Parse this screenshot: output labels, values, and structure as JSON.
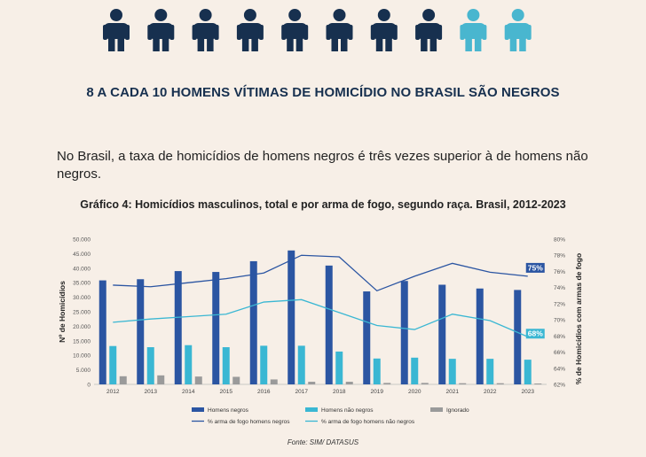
{
  "infographic": {
    "headline": "8 A CADA 10 HOMENS VÍTIMAS DE HOMICÍDIO NO BRASIL SÃO NEGROS",
    "people_total": 10,
    "people_highlighted": 8,
    "icon": "person-icon"
  },
  "body_text": "No Brasil, a taxa de homicídios de homens negros é três vezes superior à de homens não negros.",
  "source": "Fonte: SIM/ DATASUS",
  "colors": {
    "dark_blue": "#17304f",
    "light_blue": "#49b6cf",
    "bar_negros": "#2b55a2",
    "bar_nao_negros": "#3ab7d3",
    "bar_ignorado": "#9a9a9a",
    "background": "#f7efe7"
  },
  "chart_data": {
    "type": "bar",
    "title": "Gráfico 4: Homicídios masculinos, total e por arma de fogo, segundo raça. Brasil, 2012-2023",
    "ylabel": "Nº de Homicídios",
    "y2label": "% de Homicídios com armas de fogo",
    "categories": [
      "2012",
      "2013",
      "2014",
      "2015",
      "2016",
      "2017",
      "2018",
      "2019",
      "2020",
      "2021",
      "2022",
      "2023"
    ],
    "ylim": [
      0,
      50000
    ],
    "yticks": [
      0,
      5000,
      10000,
      15000,
      20000,
      25000,
      30000,
      35000,
      40000,
      45000,
      50000
    ],
    "ytick_labels": [
      "0",
      "5.000",
      "10.000",
      "15.000",
      "20.000",
      "25.000",
      "30.000",
      "35.000",
      "40.000",
      "45.000",
      "50.000"
    ],
    "y2lim": [
      62,
      80
    ],
    "y2ticks": [
      62,
      64,
      66,
      68,
      70,
      72,
      74,
      76,
      78,
      80
    ],
    "y2tick_labels": [
      "62%",
      "64%",
      "66%",
      "68%",
      "70%",
      "72%",
      "74%",
      "76%",
      "78%",
      "80%"
    ],
    "series": [
      {
        "name": "Homens negros",
        "kind": "bar",
        "axis": "left",
        "values": [
          35800,
          36200,
          39000,
          38700,
          42400,
          46100,
          40900,
          32000,
          35600,
          34300,
          33000,
          32500
        ]
      },
      {
        "name": "Homens não negros",
        "kind": "bar",
        "axis": "left",
        "values": [
          13200,
          12800,
          13500,
          12800,
          13300,
          13300,
          11300,
          8900,
          9200,
          8800,
          8800,
          8500
        ]
      },
      {
        "name": "Ignorado",
        "kind": "bar",
        "axis": "left",
        "values": [
          2800,
          3100,
          2700,
          2600,
          1700,
          900,
          900,
          500,
          500,
          400,
          400,
          300
        ]
      },
      {
        "name": "% arma de fogo homens negros",
        "kind": "line",
        "axis": "right",
        "values": [
          74.3,
          74.1,
          74.6,
          75.1,
          75.8,
          78.0,
          77.8,
          73.6,
          75.4,
          77.0,
          75.9,
          75.4
        ],
        "end_label": "75%"
      },
      {
        "name": "% arma de fogo homens não negros",
        "kind": "line",
        "axis": "right",
        "values": [
          69.7,
          70.1,
          70.4,
          70.7,
          72.2,
          72.5,
          70.9,
          69.3,
          68.8,
          70.7,
          69.9,
          67.9
        ],
        "end_label": "68%"
      }
    ],
    "legend_position": "bottom"
  }
}
